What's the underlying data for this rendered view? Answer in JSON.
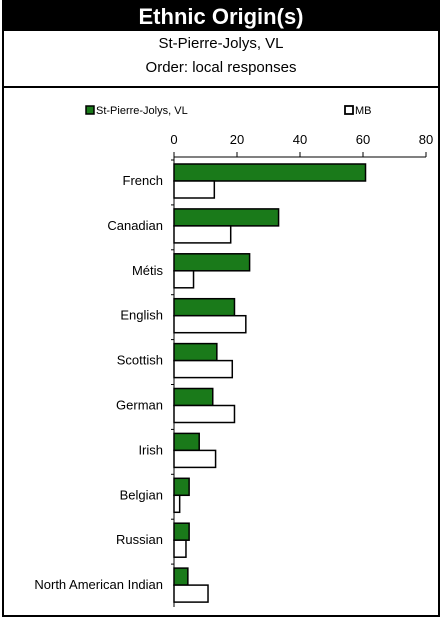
{
  "header": {
    "title": "Ethnic Origin(s)",
    "subtitle": "St-Pierre-Jolys, VL",
    "order_note": "Order: local responses"
  },
  "colors": {
    "local": "#1a7a1a",
    "mb": "#ffffff",
    "stroke": "#000000"
  },
  "chart_data": {
    "type": "bar",
    "orientation": "horizontal",
    "categories": [
      "French",
      "Canadian",
      "Métis",
      "English",
      "Scottish",
      "German",
      "Irish",
      "Belgian",
      "Russian",
      "North American Indian"
    ],
    "series": [
      {
        "name": "St-Pierre-Jolys, VL",
        "values": [
          60.8,
          33.2,
          24,
          19.2,
          13.6,
          12.3,
          8,
          4.8,
          4.8,
          4.4
        ]
      },
      {
        "name": "MB",
        "values": [
          12.8,
          18,
          6.2,
          22.8,
          18.5,
          19.2,
          13.2,
          1.8,
          3.8,
          10.8
        ]
      }
    ],
    "xlim": [
      0,
      80
    ],
    "xticks": [
      0,
      20,
      40,
      60,
      80
    ],
    "legend_position": "top",
    "grid": false
  }
}
